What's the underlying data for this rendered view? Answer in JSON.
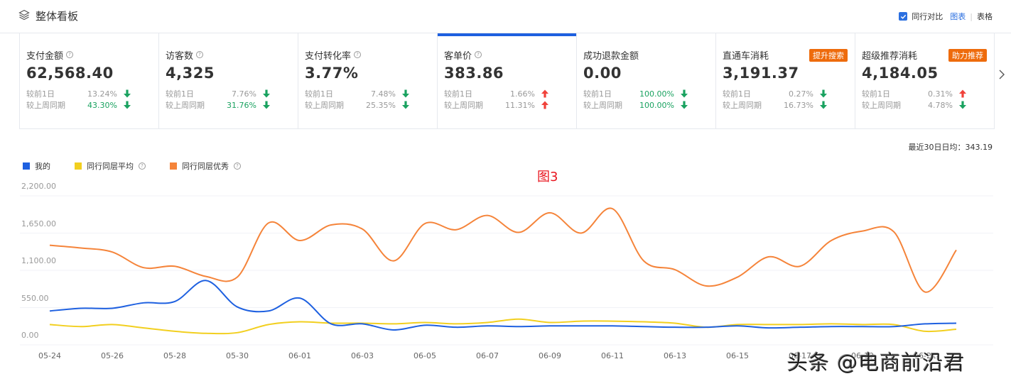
{
  "header": {
    "title": "整体看板",
    "peer_compare_label": "同行对比",
    "peer_compare_checked": true,
    "view_chart": "图表",
    "view_separator": "|",
    "view_table": "表格"
  },
  "cards": [
    {
      "label": "支付金额",
      "help": true,
      "value": "62,568.40",
      "badge": "",
      "active": false,
      "day": {
        "label": "较前1日",
        "pct": "13.24%",
        "dir": "down",
        "green_text": false
      },
      "week": {
        "label": "较上周同期",
        "pct": "43.30%",
        "dir": "down",
        "green_text": true
      }
    },
    {
      "label": "访客数",
      "help": true,
      "value": "4,325",
      "badge": "",
      "active": false,
      "day": {
        "label": "较前1日",
        "pct": "7.76%",
        "dir": "down",
        "green_text": false
      },
      "week": {
        "label": "较上周同期",
        "pct": "31.76%",
        "dir": "down",
        "green_text": true
      }
    },
    {
      "label": "支付转化率",
      "help": true,
      "value": "3.77%",
      "badge": "",
      "active": false,
      "day": {
        "label": "较前1日",
        "pct": "7.48%",
        "dir": "down",
        "green_text": false
      },
      "week": {
        "label": "较上周同期",
        "pct": "25.35%",
        "dir": "down",
        "green_text": false
      }
    },
    {
      "label": "客单价",
      "help": true,
      "value": "383.86",
      "badge": "",
      "active": true,
      "day": {
        "label": "较前1日",
        "pct": "1.66%",
        "dir": "up",
        "green_text": false
      },
      "week": {
        "label": "较上周同期",
        "pct": "11.31%",
        "dir": "up",
        "green_text": false
      }
    },
    {
      "label": "成功退款金额",
      "help": false,
      "value": "0.00",
      "badge": "",
      "active": false,
      "day": {
        "label": "较前1日",
        "pct": "100.00%",
        "dir": "down",
        "green_text": true
      },
      "week": {
        "label": "较上周同期",
        "pct": "100.00%",
        "dir": "down",
        "green_text": true
      }
    },
    {
      "label": "直通车消耗",
      "help": false,
      "value": "3,191.37",
      "badge": "提升搜索",
      "active": false,
      "day": {
        "label": "较前1日",
        "pct": "0.27%",
        "dir": "down",
        "green_text": false
      },
      "week": {
        "label": "较上周同期",
        "pct": "16.73%",
        "dir": "down",
        "green_text": false
      }
    },
    {
      "label": "超级推荐消耗",
      "help": false,
      "value": "4,184.05",
      "badge": "助力推荐",
      "active": false,
      "day": {
        "label": "较前1日",
        "pct": "0.31%",
        "dir": "up",
        "green_text": false
      },
      "week": {
        "label": "较上周同期",
        "pct": "4.78%",
        "dir": "down",
        "green_text": false
      }
    }
  ],
  "colors": {
    "up": "#f0413a",
    "down": "#1aa260",
    "accent": "#1e60e0",
    "badge": "#ee6b0c"
  },
  "avg_label": "最近30日日均：343.19",
  "figure_label": "图3",
  "watermark": "头条 @电商前沿君",
  "chart_data": {
    "type": "line",
    "title": "",
    "xlabel": "",
    "ylabel": "",
    "ylim": [
      0,
      2200
    ],
    "yticks": [
      "0.00",
      "550.00",
      "1,100.00",
      "1,650.00",
      "2,200.00"
    ],
    "grid": true,
    "legend_position": "top-left",
    "x": [
      "05-24",
      "05-25",
      "05-26",
      "05-27",
      "05-28",
      "05-29",
      "05-30",
      "05-31",
      "06-01",
      "06-02",
      "06-03",
      "06-04",
      "06-05",
      "06-06",
      "06-07",
      "06-08",
      "06-09",
      "06-10",
      "06-11",
      "06-12",
      "06-13",
      "06-14",
      "06-15",
      "06-16",
      "06-17",
      "06-18",
      "06-19",
      "06-20",
      "06-21",
      "06-22"
    ],
    "xtick_labels": [
      "05-24",
      "05-26",
      "05-28",
      "05-30",
      "06-01",
      "06-03",
      "06-05",
      "06-07",
      "06-09",
      "06-11",
      "06-13",
      "06-15",
      "06-17",
      "06-19",
      "06-21"
    ],
    "series": [
      {
        "name": "我的",
        "color": "#1e60e0",
        "help": false,
        "values": [
          500,
          540,
          540,
          620,
          640,
          950,
          560,
          500,
          690,
          310,
          310,
          220,
          290,
          260,
          280,
          270,
          280,
          280,
          280,
          270,
          260,
          260,
          280,
          250,
          260,
          270,
          270,
          270,
          310,
          320
        ]
      },
      {
        "name": "同行同层平均",
        "color": "#f2cf1f",
        "help": true,
        "values": [
          300,
          270,
          300,
          250,
          200,
          170,
          180,
          300,
          340,
          320,
          320,
          310,
          330,
          310,
          330,
          380,
          330,
          350,
          350,
          340,
          320,
          260,
          300,
          300,
          300,
          310,
          300,
          300,
          200,
          230
        ]
      },
      {
        "name": "同行同层优秀",
        "color": "#f5843a",
        "help": true,
        "values": [
          1470,
          1430,
          1370,
          1140,
          1160,
          1010,
          1000,
          1800,
          1540,
          1770,
          1710,
          1240,
          1790,
          1700,
          1910,
          1660,
          1950,
          1650,
          2010,
          1240,
          1110,
          870,
          1000,
          1300,
          1160,
          1540,
          1680,
          1670,
          780,
          1400
        ]
      }
    ]
  }
}
